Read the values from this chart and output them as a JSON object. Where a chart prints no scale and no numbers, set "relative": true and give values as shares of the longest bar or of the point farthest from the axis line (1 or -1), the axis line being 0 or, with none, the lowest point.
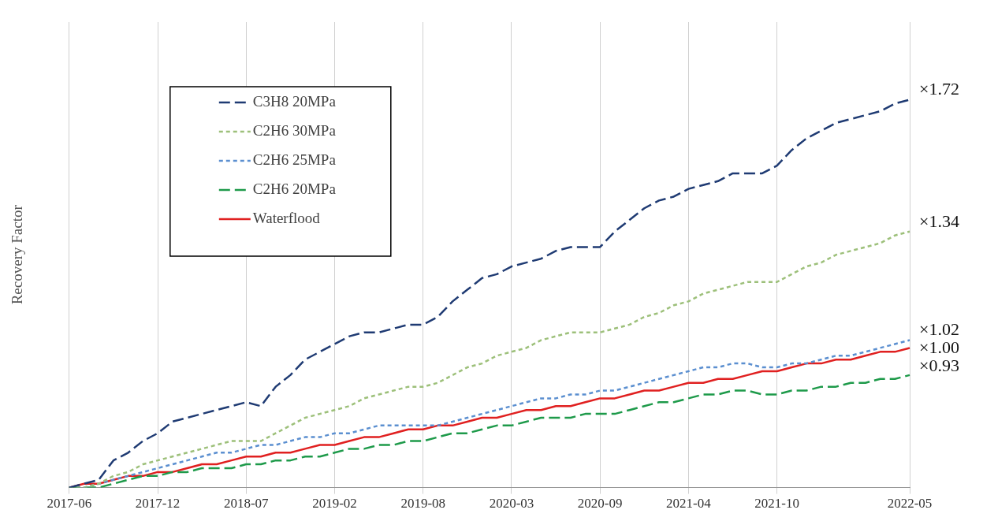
{
  "chart_data": {
    "type": "line",
    "relative": true,
    "ylabel": "Recovery Factor",
    "grid": "x",
    "legend": "top left",
    "marker": "none",
    "categories": [
      "2017-06",
      null,
      null,
      null,
      null,
      null,
      "2017-12",
      null,
      null,
      null,
      null,
      null,
      "2018-07",
      null,
      null,
      null,
      null,
      null,
      "2019-02",
      null,
      null,
      null,
      null,
      null,
      "2019-08",
      null,
      null,
      null,
      null,
      null,
      "2020-03",
      null,
      null,
      null,
      null,
      null,
      "2020-09",
      null,
      null,
      null,
      null,
      null,
      "2021-04",
      null,
      null,
      null,
      null,
      null,
      "2021-10",
      null,
      null,
      null,
      null,
      null,
      null,
      null,
      null,
      "2022-05"
    ],
    "series": [
      {
        "name": "C3H8 20MPa",
        "color": "#1f3b73",
        "line_style": "dashed",
        "values": [
          0,
          0.01,
          0.02,
          0.07,
          0.09,
          0.12,
          0.14,
          0.17,
          0.18,
          0.19,
          0.2,
          0.21,
          0.22,
          0.21,
          0.26,
          0.29,
          0.33,
          0.35,
          0.37,
          0.39,
          0.4,
          0.4,
          0.41,
          0.42,
          0.42,
          0.44,
          0.48,
          0.51,
          0.54,
          0.55,
          0.57,
          0.58,
          0.59,
          0.61,
          0.62,
          0.62,
          0.62,
          0.66,
          0.69,
          0.72,
          0.74,
          0.75,
          0.77,
          0.78,
          0.79,
          0.81,
          0.81,
          0.81,
          0.83,
          0.87,
          0.9,
          0.92,
          0.94,
          0.95,
          0.96,
          0.97,
          0.99,
          1.0
        ]
      },
      {
        "name": "C2H6 30MPa",
        "color": "#9dc07a",
        "line_style": "dotted",
        "values": [
          0,
          0,
          0.01,
          0.03,
          0.04,
          0.06,
          0.07,
          0.08,
          0.09,
          0.1,
          0.11,
          0.12,
          0.12,
          0.12,
          0.14,
          0.16,
          0.18,
          0.19,
          0.2,
          0.21,
          0.23,
          0.24,
          0.25,
          0.26,
          0.26,
          0.27,
          0.29,
          0.31,
          0.32,
          0.34,
          0.35,
          0.36,
          0.38,
          0.39,
          0.4,
          0.4,
          0.4,
          0.41,
          0.42,
          0.44,
          0.45,
          0.47,
          0.48,
          0.5,
          0.51,
          0.52,
          0.53,
          0.53,
          0.53,
          0.55,
          0.57,
          0.58,
          0.6,
          0.61,
          0.62,
          0.63,
          0.65,
          0.66
        ]
      },
      {
        "name": "C2H6 25MPa",
        "color": "#5b8fd0",
        "line_style": "dotted",
        "values": [
          0,
          0,
          0.01,
          0.02,
          0.03,
          0.04,
          0.05,
          0.06,
          0.07,
          0.08,
          0.09,
          0.09,
          0.1,
          0.11,
          0.11,
          0.12,
          0.13,
          0.13,
          0.14,
          0.14,
          0.15,
          0.16,
          0.16,
          0.16,
          0.16,
          0.16,
          0.17,
          0.18,
          0.19,
          0.2,
          0.21,
          0.22,
          0.23,
          0.23,
          0.24,
          0.24,
          0.25,
          0.25,
          0.26,
          0.27,
          0.28,
          0.29,
          0.3,
          0.31,
          0.31,
          0.32,
          0.32,
          0.31,
          0.31,
          0.32,
          0.32,
          0.33,
          0.34,
          0.34,
          0.35,
          0.36,
          0.37,
          0.38
        ]
      },
      {
        "name": "C2H6 20MPa",
        "color": "#1e9a4a",
        "line_style": "dashed",
        "values": [
          0,
          0,
          0,
          0.01,
          0.02,
          0.03,
          0.03,
          0.04,
          0.04,
          0.05,
          0.05,
          0.05,
          0.06,
          0.06,
          0.07,
          0.07,
          0.08,
          0.08,
          0.09,
          0.1,
          0.1,
          0.11,
          0.11,
          0.12,
          0.12,
          0.13,
          0.14,
          0.14,
          0.15,
          0.16,
          0.16,
          0.17,
          0.18,
          0.18,
          0.18,
          0.19,
          0.19,
          0.19,
          0.2,
          0.21,
          0.22,
          0.22,
          0.23,
          0.24,
          0.24,
          0.25,
          0.25,
          0.24,
          0.24,
          0.25,
          0.25,
          0.26,
          0.26,
          0.27,
          0.27,
          0.28,
          0.28,
          0.29
        ]
      },
      {
        "name": "Waterflood",
        "color": "#e02020",
        "line_style": "solid",
        "values": [
          0,
          0.01,
          0.01,
          0.02,
          0.03,
          0.03,
          0.04,
          0.04,
          0.05,
          0.06,
          0.06,
          0.07,
          0.08,
          0.08,
          0.09,
          0.09,
          0.1,
          0.11,
          0.11,
          0.12,
          0.13,
          0.13,
          0.14,
          0.15,
          0.15,
          0.16,
          0.16,
          0.17,
          0.18,
          0.18,
          0.19,
          0.2,
          0.2,
          0.21,
          0.21,
          0.22,
          0.23,
          0.23,
          0.24,
          0.25,
          0.25,
          0.26,
          0.27,
          0.27,
          0.28,
          0.28,
          0.29,
          0.3,
          0.3,
          0.31,
          0.32,
          0.32,
          0.33,
          0.33,
          0.34,
          0.35,
          0.35,
          0.36
        ]
      }
    ],
    "annotations": [
      {
        "text": "×1.72",
        "x": "2022-05",
        "y": 1.0
      },
      {
        "text": "×1.34",
        "x": "2022-05",
        "y": 0.66
      },
      {
        "text": "×1.02",
        "x": "2022-05",
        "y": 0.38
      },
      {
        "text": "×1.00",
        "x": "2022-05",
        "y": 0.36
      },
      {
        "text": "×0.93",
        "x": "2022-05",
        "y": 0.29
      }
    ]
  }
}
